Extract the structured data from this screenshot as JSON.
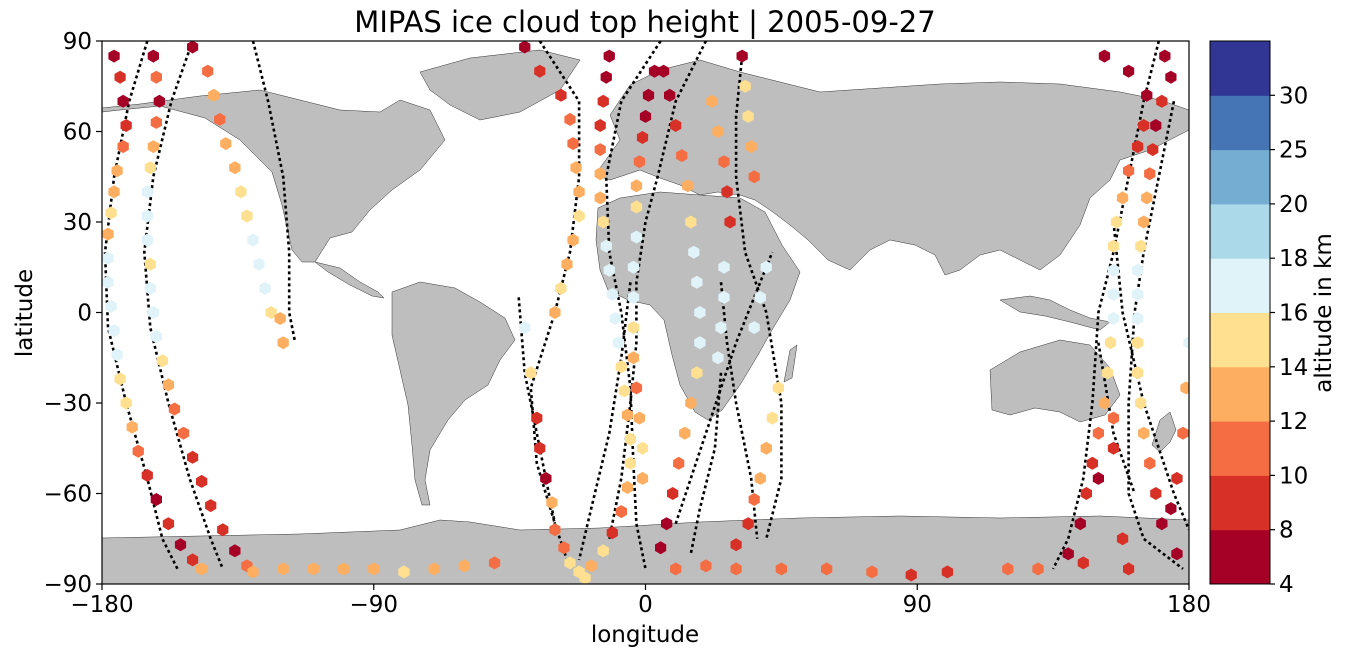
{
  "chart_data": {
    "type": "scatter",
    "subtype": "map",
    "title": "MIPAS ice cloud top height | 2005-09-27",
    "xlabel": "longitude",
    "ylabel": "latitude",
    "xlim": [
      -180,
      180
    ],
    "ylim": [
      -90,
      90
    ],
    "xticks": [
      "−180",
      "−90",
      "0",
      "90",
      "180"
    ],
    "xtick_values": [
      -180,
      -90,
      0,
      90,
      180
    ],
    "yticks": [
      "−90",
      "−60",
      "−30",
      "0",
      "30",
      "60",
      "90"
    ],
    "ytick_values": [
      -90,
      -60,
      -30,
      0,
      30,
      60,
      90
    ],
    "land_color": "#bebebe",
    "track_color": "#000000",
    "colorbar": {
      "label": "altitude in km",
      "bounds": [
        4,
        8,
        10,
        12,
        14,
        16,
        18,
        20,
        25,
        30
      ],
      "tick_labels": [
        "4",
        "8",
        "10",
        "12",
        "14",
        "16",
        "18",
        "20",
        "25",
        "30"
      ],
      "colors": [
        "#a50026",
        "#d73027",
        "#f46d43",
        "#fdae61",
        "#fee090",
        "#e0f3f8",
        "#abd9e9",
        "#74add1",
        "#4575b4",
        "#313695"
      ]
    },
    "tracks": [
      [
        [
          -165,
          90
        ],
        [
          -171,
          70
        ],
        [
          -176,
          45
        ],
        [
          -179,
          20
        ],
        [
          -178,
          -5
        ],
        [
          -172,
          -30
        ],
        [
          -165,
          -55
        ],
        [
          -160,
          -75
        ],
        [
          -155,
          -85
        ]
      ],
      [
        [
          -150,
          90
        ],
        [
          -157,
          70
        ],
        [
          -163,
          45
        ],
        [
          -166,
          20
        ],
        [
          -164,
          -5
        ],
        [
          -158,
          -30
        ],
        [
          -151,
          -55
        ],
        [
          -144,
          -75
        ],
        [
          -140,
          -85
        ]
      ],
      [
        [
          -130,
          90
        ],
        [
          -125,
          70
        ],
        [
          -120,
          45
        ],
        [
          -118,
          20
        ],
        [
          -118,
          0
        ],
        [
          -116,
          -10
        ]
      ],
      [
        [
          -35,
          90
        ],
        [
          -22,
          70
        ],
        [
          -22,
          45
        ],
        [
          -25,
          20
        ],
        [
          -30,
          0
        ],
        [
          -38,
          -25
        ],
        [
          -36,
          -50
        ],
        [
          -30,
          -70
        ],
        [
          -25,
          -85
        ]
      ],
      [
        [
          -42,
          5
        ],
        [
          -40,
          -20
        ],
        [
          -35,
          -45
        ],
        [
          -30,
          -70
        ]
      ],
      [
        [
          5,
          90
        ],
        [
          -8,
          70
        ],
        [
          -13,
          45
        ],
        [
          -12,
          20
        ],
        [
          -8,
          0
        ],
        [
          -5,
          -25
        ],
        [
          -4,
          -50
        ],
        [
          -3,
          -70
        ],
        [
          0,
          -85
        ]
      ],
      [
        [
          -5,
          10
        ],
        [
          -8,
          -15
        ],
        [
          -12,
          -40
        ],
        [
          -18,
          -65
        ],
        [
          -22,
          -82
        ]
      ],
      [
        [
          20,
          90
        ],
        [
          10,
          70
        ],
        [
          4,
          45
        ],
        [
          0,
          30
        ],
        [
          -3,
          10
        ],
        [
          -3,
          -10
        ],
        [
          -5,
          -30
        ],
        [
          -8,
          -55
        ],
        [
          -12,
          -75
        ]
      ],
      [
        [
          25,
          -20
        ],
        [
          23,
          -45
        ],
        [
          18,
          -65
        ],
        [
          15,
          -80
        ]
      ],
      [
        [
          32,
          85
        ],
        [
          30,
          65
        ],
        [
          30,
          45
        ],
        [
          33,
          20
        ],
        [
          40,
          0
        ],
        [
          45,
          -30
        ],
        [
          45,
          -55
        ],
        [
          40,
          -75
        ]
      ],
      [
        [
          25,
          10
        ],
        [
          27,
          -10
        ],
        [
          30,
          -30
        ],
        [
          35,
          -55
        ],
        [
          37,
          -75
        ]
      ],
      [
        [
          10,
          -70
        ],
        [
          20,
          -40
        ],
        [
          30,
          -10
        ],
        [
          38,
          10
        ],
        [
          42,
          20
        ]
      ],
      [
        [
          170,
          90
        ],
        [
          165,
          70
        ],
        [
          160,
          45
        ],
        [
          155,
          20
        ],
        [
          150,
          0
        ],
        [
          148,
          -30
        ],
        [
          145,
          -55
        ],
        [
          140,
          -75
        ],
        [
          135,
          -85
        ]
      ],
      [
        [
          175,
          70
        ],
        [
          170,
          45
        ],
        [
          165,
          20
        ],
        [
          162,
          0
        ],
        [
          160,
          -30
        ],
        [
          160,
          -60
        ],
        [
          165,
          -75
        ],
        [
          178,
          -85
        ]
      ],
      [
        [
          155,
          30
        ],
        [
          158,
          0
        ],
        [
          165,
          -30
        ],
        [
          175,
          -60
        ],
        [
          180,
          -72
        ]
      ],
      [
        [
          150,
          -10
        ],
        [
          155,
          -40
        ],
        [
          162,
          -60
        ]
      ]
    ],
    "points": [
      [
        -176,
        85,
        6
      ],
      [
        -174,
        78,
        8
      ],
      [
        -173,
        70,
        6
      ],
      [
        -172,
        62,
        8
      ],
      [
        -173,
        55,
        10
      ],
      [
        -175,
        47,
        12
      ],
      [
        -176,
        40,
        13
      ],
      [
        -177,
        33,
        15
      ],
      [
        -178,
        26,
        13
      ],
      [
        -178,
        18,
        16
      ],
      [
        -178,
        10,
        17
      ],
      [
        -177,
        2,
        17
      ],
      [
        -176,
        -6,
        17
      ],
      [
        -175,
        -14,
        16
      ],
      [
        -174,
        -22,
        15
      ],
      [
        -172,
        -30,
        14
      ],
      [
        -170,
        -38,
        12
      ],
      [
        -168,
        -46,
        10
      ],
      [
        -165,
        -54,
        8
      ],
      [
        -162,
        -62,
        6
      ],
      [
        -158,
        -70,
        8
      ],
      [
        -154,
        -77,
        6
      ],
      [
        -150,
        -82,
        8
      ],
      [
        -147,
        -85,
        12
      ],
      [
        -163,
        85,
        6
      ],
      [
        -162,
        78,
        11
      ],
      [
        -161,
        70,
        6
      ],
      [
        -162,
        63,
        10
      ],
      [
        -163,
        55,
        13
      ],
      [
        -164,
        48,
        15
      ],
      [
        -165,
        40,
        17
      ],
      [
        -165,
        32,
        17
      ],
      [
        -165,
        24,
        16
      ],
      [
        -164,
        16,
        15
      ],
      [
        -164,
        8,
        17
      ],
      [
        -163,
        0,
        17
      ],
      [
        -162,
        -8,
        16
      ],
      [
        -160,
        -16,
        15
      ],
      [
        -158,
        -24,
        13
      ],
      [
        -156,
        -32,
        11
      ],
      [
        -153,
        -40,
        10
      ],
      [
        -150,
        -48,
        9
      ],
      [
        -147,
        -56,
        8
      ],
      [
        -144,
        -64,
        9
      ],
      [
        -140,
        -72,
        8
      ],
      [
        -136,
        -79,
        7
      ],
      [
        -132,
        -84,
        11
      ],
      [
        -150,
        88,
        6
      ],
      [
        -145,
        80,
        10
      ],
      [
        -143,
        72,
        12
      ],
      [
        -141,
        64,
        10
      ],
      [
        -139,
        56,
        12
      ],
      [
        -136,
        48,
        13
      ],
      [
        -134,
        40,
        15
      ],
      [
        -132,
        32,
        14
      ],
      [
        -130,
        24,
        17
      ],
      [
        -128,
        16,
        17
      ],
      [
        -126,
        8,
        16
      ],
      [
        -124,
        0,
        15
      ],
      [
        -121,
        -2,
        13
      ],
      [
        -120,
        -10,
        13
      ],
      [
        -40,
        88,
        6
      ],
      [
        -35,
        80,
        8
      ],
      [
        -28,
        72,
        9
      ],
      [
        -25,
        64,
        10
      ],
      [
        -24,
        56,
        10
      ],
      [
        -23,
        48,
        12
      ],
      [
        -22,
        40,
        13
      ],
      [
        -22,
        32,
        15
      ],
      [
        -24,
        24,
        13
      ],
      [
        -26,
        16,
        12
      ],
      [
        -28,
        8,
        14
      ],
      [
        -30,
        0,
        13
      ],
      [
        -40,
        -5,
        17
      ],
      [
        -38,
        -20,
        15
      ],
      [
        -36,
        -35,
        9
      ],
      [
        -35,
        -45,
        8
      ],
      [
        -33,
        -55,
        7
      ],
      [
        -31,
        -63,
        12
      ],
      [
        -30,
        -72,
        11
      ],
      [
        -27,
        -78,
        10
      ],
      [
        -25,
        -83,
        14
      ],
      [
        -22,
        -86,
        15
      ],
      [
        -12,
        85,
        6
      ],
      [
        -13,
        78,
        6
      ],
      [
        -14,
        70,
        8
      ],
      [
        -15,
        62,
        9
      ],
      [
        -15,
        54,
        10
      ],
      [
        -15,
        46,
        12
      ],
      [
        -15,
        38,
        13
      ],
      [
        -14,
        30,
        15
      ],
      [
        -13,
        22,
        17
      ],
      [
        -12,
        14,
        17
      ],
      [
        -11,
        6,
        16
      ],
      [
        -10,
        -2,
        17
      ],
      [
        -9,
        -10,
        16
      ],
      [
        -8,
        -18,
        15
      ],
      [
        -7,
        -26,
        14
      ],
      [
        -6,
        -34,
        13
      ],
      [
        -5,
        -42,
        15
      ],
      [
        -5,
        -50,
        14
      ],
      [
        -6,
        -58,
        12
      ],
      [
        -8,
        -66,
        10
      ],
      [
        -11,
        -73,
        8
      ],
      [
        -14,
        -79,
        15
      ],
      [
        -18,
        -84,
        13
      ],
      [
        -20,
        -88,
        15
      ],
      [
        3,
        80,
        6
      ],
      [
        1,
        72,
        6
      ],
      [
        0,
        65,
        7
      ],
      [
        -1,
        58,
        8
      ],
      [
        -2,
        50,
        10
      ],
      [
        -3,
        42,
        12
      ],
      [
        -3,
        35,
        15
      ],
      [
        -3,
        25,
        17
      ],
      [
        -4,
        15,
        16
      ],
      [
        -4,
        5,
        17
      ],
      [
        -4,
        -5,
        14
      ],
      [
        -4,
        -15,
        12
      ],
      [
        -3,
        -25,
        11
      ],
      [
        -2,
        -35,
        13
      ],
      [
        -1,
        -45,
        14
      ],
      [
        -1,
        -55,
        12
      ],
      [
        6,
        80,
        6
      ],
      [
        8,
        72,
        7
      ],
      [
        10,
        62,
        9
      ],
      [
        12,
        52,
        11
      ],
      [
        14,
        42,
        13
      ],
      [
        15,
        30,
        15
      ],
      [
        16,
        20,
        17
      ],
      [
        17,
        10,
        17
      ],
      [
        18,
        0,
        17
      ],
      [
        18,
        -10,
        16
      ],
      [
        17,
        -20,
        15
      ],
      [
        15,
        -30,
        13
      ],
      [
        13,
        -40,
        12
      ],
      [
        11,
        -50,
        11
      ],
      [
        9,
        -60,
        9
      ],
      [
        7,
        -70,
        7
      ],
      [
        5,
        -78,
        6
      ],
      [
        22,
        70,
        13
      ],
      [
        24,
        60,
        13
      ],
      [
        26,
        50,
        11
      ],
      [
        27,
        40,
        9
      ],
      [
        28,
        30,
        8
      ],
      [
        32,
        85,
        7
      ],
      [
        33,
        75,
        15
      ],
      [
        34,
        65,
        14
      ],
      [
        35,
        55,
        12
      ],
      [
        36,
        45,
        10
      ],
      [
        26,
        15,
        17
      ],
      [
        26,
        5,
        17
      ],
      [
        25,
        -5,
        16
      ],
      [
        24,
        -15,
        16
      ],
      [
        40,
        15,
        17
      ],
      [
        38,
        5,
        17
      ],
      [
        36,
        -5,
        17
      ],
      [
        44,
        -25,
        15
      ],
      [
        42,
        -35,
        14
      ],
      [
        40,
        -45,
        13
      ],
      [
        38,
        -55,
        12
      ],
      [
        36,
        -62,
        10
      ],
      [
        34,
        -70,
        9
      ],
      [
        30,
        -77,
        8
      ],
      [
        152,
        85,
        6
      ],
      [
        160,
        80,
        6
      ],
      [
        166,
        72,
        6
      ],
      [
        165,
        62,
        8
      ],
      [
        163,
        55,
        9
      ],
      [
        160,
        47,
        10
      ],
      [
        158,
        38,
        12
      ],
      [
        156,
        30,
        14
      ],
      [
        155,
        22,
        15
      ],
      [
        155,
        14,
        16
      ],
      [
        155,
        6,
        16
      ],
      [
        155,
        -2,
        17
      ],
      [
        154,
        -10,
        15
      ],
      [
        153,
        -20,
        14
      ],
      [
        152,
        -30,
        13
      ],
      [
        150,
        -40,
        11
      ],
      [
        148,
        -50,
        9
      ],
      [
        146,
        -60,
        8
      ],
      [
        144,
        -70,
        7
      ],
      [
        140,
        -80,
        6
      ],
      [
        172,
        85,
        6
      ],
      [
        174,
        78,
        7
      ],
      [
        171,
        70,
        8
      ],
      [
        169,
        62,
        6
      ],
      [
        168,
        54,
        8
      ],
      [
        167,
        46,
        10
      ],
      [
        166,
        38,
        12
      ],
      [
        165,
        30,
        13
      ],
      [
        164,
        22,
        15
      ],
      [
        163,
        14,
        16
      ],
      [
        163,
        6,
        16
      ],
      [
        163,
        -2,
        17
      ],
      [
        163,
        -10,
        15
      ],
      [
        163,
        -20,
        15
      ],
      [
        164,
        -30,
        14
      ],
      [
        165,
        -40,
        12
      ],
      [
        167,
        -50,
        10
      ],
      [
        169,
        -60,
        8
      ],
      [
        171,
        -70,
        6
      ],
      [
        176,
        -80,
        7
      ],
      [
        180,
        -10,
        16
      ],
      [
        179,
        -25,
        13
      ],
      [
        178,
        -40,
        11
      ],
      [
        176,
        -55,
        9
      ],
      [
        174,
        -65,
        7
      ],
      [
        155,
        -35,
        10
      ],
      [
        155,
        -45,
        8
      ],
      [
        150,
        -55,
        7
      ],
      [
        158,
        -75,
        9
      ],
      [
        120,
        -85,
        11
      ],
      [
        130,
        -85,
        10
      ],
      [
        145,
        -83,
        8
      ],
      [
        160,
        -85,
        9
      ],
      [
        -100,
        -85,
        13
      ],
      [
        -90,
        -85,
        13
      ],
      [
        -80,
        -86,
        14
      ],
      [
        -70,
        -85,
        13
      ],
      [
        -60,
        -84,
        12
      ],
      [
        -50,
        -83,
        11
      ],
      [
        -130,
        -86,
        13
      ],
      [
        -120,
        -85,
        13
      ],
      [
        -110,
        -85,
        12
      ],
      [
        10,
        -85,
        10
      ],
      [
        20,
        -84,
        11
      ],
      [
        30,
        -85,
        11
      ],
      [
        45,
        -85,
        11
      ],
      [
        60,
        -85,
        11
      ],
      [
        75,
        -86,
        10
      ],
      [
        88,
        -87,
        9
      ],
      [
        100,
        -86,
        8
      ]
    ]
  }
}
